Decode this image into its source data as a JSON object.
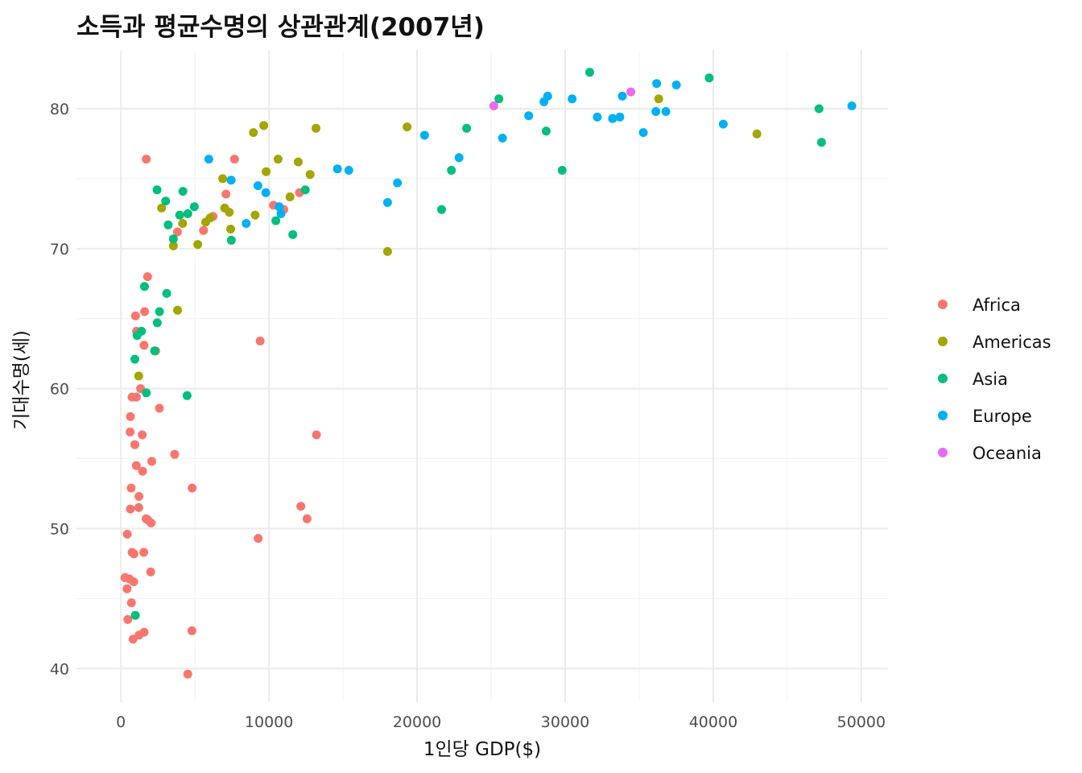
{
  "chart_data": {
    "type": "scatter",
    "title": "소득과 평균수명의 상관관계(2007년)",
    "xlabel": "1인당 GDP($)",
    "ylabel": "기대수명(세)",
    "xlim": [
      -3000,
      51800
    ],
    "ylim": [
      37.6,
      84.2
    ],
    "x_ticks": [
      0,
      10000,
      20000,
      30000,
      40000,
      50000
    ],
    "y_ticks": [
      40,
      50,
      60,
      70,
      80
    ],
    "grid": true,
    "legend": {
      "position": "right"
    },
    "series": [
      {
        "name": "Africa",
        "color": "#F8766D",
        "points": [
          [
            6223,
            72.3
          ],
          [
            4797,
            42.7
          ],
          [
            1441,
            56.7
          ],
          [
            12570,
            50.7
          ],
          [
            1217,
            52.3
          ],
          [
            430,
            49.6
          ],
          [
            2042,
            50.4
          ],
          [
            706,
            44.7
          ],
          [
            1704,
            50.7
          ],
          [
            986,
            65.2
          ],
          [
            278,
            46.5
          ],
          [
            3633,
            55.3
          ],
          [
            1545,
            48.3
          ],
          [
            2082,
            54.8
          ],
          [
            5581,
            71.3
          ],
          [
            12154,
            51.6
          ],
          [
            641,
            58.0
          ],
          [
            690,
            52.9
          ],
          [
            13206,
            56.7
          ],
          [
            753,
            59.4
          ],
          [
            1327,
            60.0
          ],
          [
            943,
            56.0
          ],
          [
            579,
            46.4
          ],
          [
            1463,
            54.1
          ],
          [
            1569,
            42.6
          ],
          [
            415,
            45.7
          ],
          [
            12057,
            74.0
          ],
          [
            1045,
            59.4
          ],
          [
            759,
            48.3
          ],
          [
            1042,
            54.5
          ],
          [
            1803,
            68.0
          ],
          [
            1712,
            76.4
          ],
          [
            3820,
            71.2
          ],
          [
            824,
            42.1
          ],
          [
            4811,
            52.9
          ],
          [
            620,
            56.9
          ],
          [
            2014,
            46.9
          ],
          [
            7670,
            76.4
          ],
          [
            863,
            46.2
          ],
          [
            1598,
            65.5
          ],
          [
            1232,
            42.4
          ],
          [
            7093,
            73.9
          ],
          [
            2602,
            58.6
          ],
          [
            4513,
            39.6
          ],
          [
            882,
            48.2
          ],
          [
            11000,
            72.8
          ],
          [
            9270,
            49.3
          ],
          [
            1056,
            64.1
          ],
          [
            1204,
            51.5
          ],
          [
            470,
            43.5
          ],
          [
            2350,
            62.7
          ],
          [
            1560,
            63.1
          ],
          [
            9400,
            63.4
          ],
          [
            10300,
            73.1
          ],
          [
            1830,
            50.6
          ],
          [
            645,
            51.4
          ]
        ]
      },
      {
        "name": "Americas",
        "color": "#A3A500",
        "points": [
          [
            12779,
            75.3
          ],
          [
            3822,
            65.6
          ],
          [
            9066,
            72.4
          ],
          [
            36319,
            80.7
          ],
          [
            13172,
            78.6
          ],
          [
            7007,
            72.9
          ],
          [
            9645,
            78.8
          ],
          [
            8948,
            78.3
          ],
          [
            6025,
            72.2
          ],
          [
            6873,
            75.0
          ],
          [
            5728,
            71.9
          ],
          [
            5186,
            70.3
          ],
          [
            1202,
            60.9
          ],
          [
            3548,
            70.2
          ],
          [
            7321,
            72.6
          ],
          [
            11978,
            76.2
          ],
          [
            2749,
            72.9
          ],
          [
            9809,
            75.5
          ],
          [
            4173,
            71.8
          ],
          [
            7409,
            71.4
          ],
          [
            19329,
            78.7
          ],
          [
            18009,
            69.8
          ],
          [
            42952,
            78.2
          ],
          [
            10611,
            76.4
          ],
          [
            11416,
            73.7
          ]
        ]
      },
      {
        "name": "Asia",
        "color": "#00BF7D",
        "points": [
          [
            975,
            43.8
          ],
          [
            29796,
            75.6
          ],
          [
            1391,
            64.1
          ],
          [
            1714,
            59.7
          ],
          [
            4959,
            73.0
          ],
          [
            39725,
            82.2
          ],
          [
            2452,
            64.7
          ],
          [
            3541,
            70.7
          ],
          [
            11606,
            71.0
          ],
          [
            4471,
            59.5
          ],
          [
            25523,
            80.7
          ],
          [
            31656,
            82.6
          ],
          [
            4519,
            72.5
          ],
          [
            1593,
            67.3
          ],
          [
            23348,
            78.6
          ],
          [
            47307,
            77.6
          ],
          [
            10461,
            72.0
          ],
          [
            12452,
            74.2
          ],
          [
            3096,
            66.8
          ],
          [
            944,
            62.1
          ],
          [
            1091,
            63.8
          ],
          [
            22316,
            75.6
          ],
          [
            2606,
            65.5
          ],
          [
            3190,
            71.7
          ],
          [
            21655,
            72.8
          ],
          [
            47143,
            80.0
          ],
          [
            3970,
            72.4
          ],
          [
            4185,
            74.1
          ],
          [
            28718,
            78.4
          ],
          [
            2442,
            74.2
          ],
          [
            2281,
            62.7
          ],
          [
            3025,
            73.4
          ],
          [
            7458,
            70.6
          ]
        ]
      },
      {
        "name": "Europe",
        "color": "#00B0F6",
        "points": [
          [
            5937,
            76.4
          ],
          [
            36126,
            79.8
          ],
          [
            33693,
            79.4
          ],
          [
            7446,
            74.9
          ],
          [
            10681,
            73.0
          ],
          [
            14619,
            75.7
          ],
          [
            22833,
            76.5
          ],
          [
            35278,
            78.3
          ],
          [
            33207,
            79.3
          ],
          [
            30470,
            80.7
          ],
          [
            32170,
            79.4
          ],
          [
            27538,
            79.5
          ],
          [
            18009,
            73.3
          ],
          [
            36181,
            81.8
          ],
          [
            40676,
            78.9
          ],
          [
            28570,
            80.5
          ],
          [
            9254,
            74.5
          ],
          [
            36798,
            79.8
          ],
          [
            49357,
            80.2
          ],
          [
            15390,
            75.6
          ],
          [
            20510,
            78.1
          ],
          [
            10808,
            72.5
          ],
          [
            9787,
            74.0
          ],
          [
            8458,
            71.8
          ],
          [
            18678,
            74.7
          ],
          [
            25768,
            77.9
          ],
          [
            28821,
            80.9
          ],
          [
            33860,
            80.9
          ],
          [
            37506,
            81.7
          ],
          [
            33203,
            79.3
          ]
        ]
      },
      {
        "name": "Oceania",
        "color": "#E76BF3",
        "points": [
          [
            34435,
            81.2
          ],
          [
            25185,
            80.2
          ]
        ]
      }
    ]
  }
}
